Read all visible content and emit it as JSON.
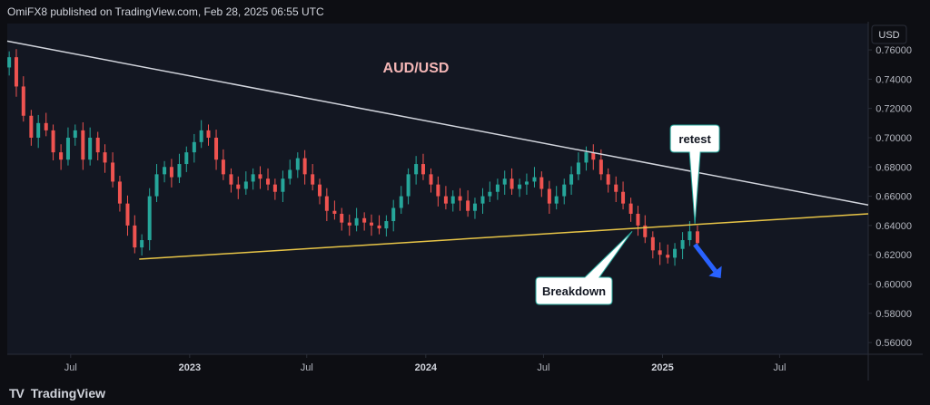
{
  "header": {
    "publisher": "OmiFX8 published on TradingView.com, Feb 28, 2025 06:55 UTC"
  },
  "footer": {
    "logo_text": "TradingView"
  },
  "colors": {
    "background": "#131722",
    "up": "#26a69a",
    "down": "#ef5350",
    "resistance": "#d1d4dc",
    "support": "#e8c547",
    "arrow": "#2962ff"
  },
  "chart_data": {
    "type": "candlestick",
    "title": "AUD/USD",
    "currency": "USD",
    "ylim": [
      0.552,
      0.778
    ],
    "y_ticks": [
      "0.56000",
      "0.58000",
      "0.60000",
      "0.62000",
      "0.64000",
      "0.66000",
      "0.68000",
      "0.70000",
      "0.72000",
      "0.74000",
      "0.76000"
    ],
    "x_ticks": [
      {
        "label": "Jul",
        "date": "2022-07-01",
        "year": false
      },
      {
        "label": "2023",
        "date": "2023-01-01",
        "year": true
      },
      {
        "label": "Jul",
        "date": "2023-07-01",
        "year": false
      },
      {
        "label": "2024",
        "date": "2024-01-01",
        "year": true
      },
      {
        "label": "Jul",
        "date": "2024-07-01",
        "year": false
      },
      {
        "label": "2025",
        "date": "2025-01-01",
        "year": true
      },
      {
        "label": "Jul",
        "date": "2025-07-01",
        "year": false
      }
    ],
    "closes": [
      0.755,
      0.735,
      0.715,
      0.7,
      0.71,
      0.705,
      0.69,
      0.685,
      0.7,
      0.705,
      0.685,
      0.7,
      0.69,
      0.683,
      0.67,
      0.655,
      0.64,
      0.625,
      0.63,
      0.66,
      0.675,
      0.68,
      0.673,
      0.682,
      0.69,
      0.697,
      0.705,
      0.7,
      0.685,
      0.675,
      0.668,
      0.665,
      0.67,
      0.675,
      0.672,
      0.668,
      0.663,
      0.672,
      0.678,
      0.686,
      0.675,
      0.668,
      0.66,
      0.65,
      0.648,
      0.642,
      0.64,
      0.645,
      0.642,
      0.64,
      0.638,
      0.643,
      0.652,
      0.66,
      0.675,
      0.682,
      0.675,
      0.668,
      0.66,
      0.655,
      0.66,
      0.657,
      0.65,
      0.655,
      0.66,
      0.663,
      0.668,
      0.672,
      0.665,
      0.668,
      0.67,
      0.673,
      0.665,
      0.655,
      0.66,
      0.668,
      0.675,
      0.683,
      0.69,
      0.685,
      0.675,
      0.668,
      0.663,
      0.655,
      0.648,
      0.64,
      0.632,
      0.623,
      0.62,
      0.618,
      0.624,
      0.63,
      0.636,
      0.628
    ],
    "resistance_line": {
      "from": [
        "2022-03-25",
        0.766
      ],
      "to": [
        "2025-11-15",
        0.654
      ]
    },
    "support_line": {
      "from": [
        "2022-10-15",
        0.617
      ],
      "to": [
        "2025-11-15",
        0.648
      ]
    },
    "annotations": [
      {
        "text": "retest",
        "at": [
          "2025-02-20",
          0.64
        ]
      },
      {
        "text": "Breakdown",
        "at": [
          "2024-11-15",
          0.636
        ]
      }
    ],
    "projection_arrow": {
      "from": [
        "2025-02-20",
        0.627
      ],
      "to": [
        "2025-04-01",
        0.604
      ]
    },
    "grid": false,
    "legend": "none"
  }
}
